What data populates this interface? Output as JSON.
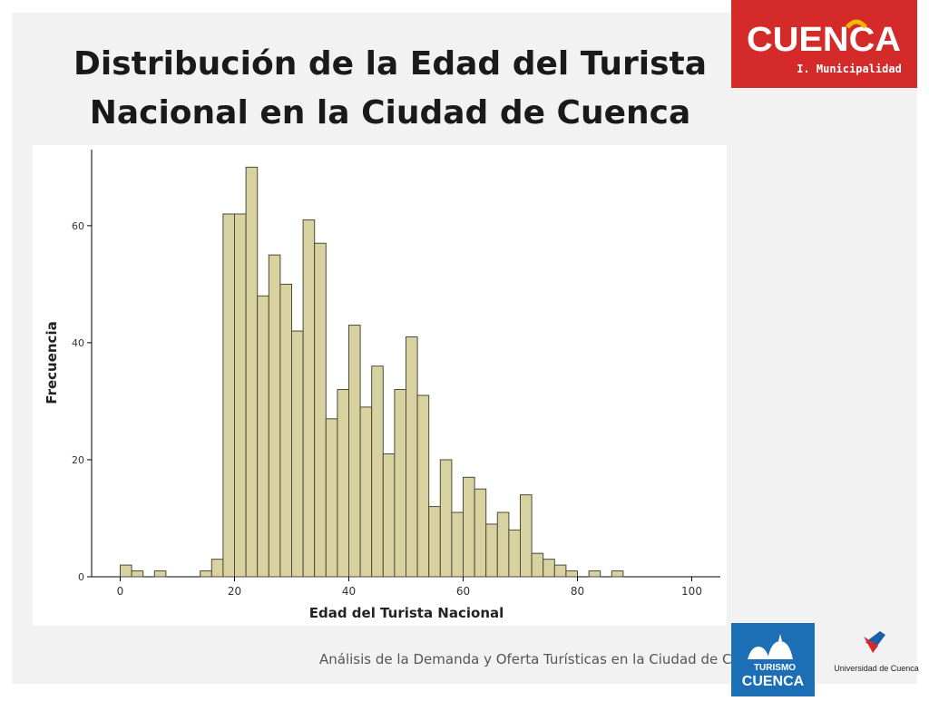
{
  "slide": {
    "title_line1": "Distribución de la Edad del Turista",
    "title_line2": "Nacional en la Ciudad de Cuenca",
    "footer": "Análisis de la Demanda y Oferta Turísticas en la Ciudad de Cuenca"
  },
  "logos": {
    "cuenca_wordmark": "CUENCA",
    "cuenca_subtitle": "I. Municipalidad",
    "turismo_top": "TURISMO",
    "turismo_word": "CUENCA",
    "universidad": "Universidad de Cuenca"
  },
  "colors": {
    "bar_fill": "#d7d2a0",
    "bar_stroke": "#4d4a3a",
    "cuenca_red": "#d42a2a",
    "turismo_blue": "#1c6eb5"
  },
  "chart_data": {
    "type": "bar",
    "xlabel": "Edad del Turista Nacional",
    "ylabel": "Frecuencia",
    "xlim": [
      -5,
      105
    ],
    "ylim": [
      0,
      73
    ],
    "xticks": [
      0,
      20,
      40,
      60,
      80,
      100
    ],
    "yticks": [
      0,
      20,
      40,
      60
    ],
    "bin_width": 2,
    "grid": false,
    "bins": [
      {
        "x": 1,
        "y": 2
      },
      {
        "x": 3,
        "y": 1
      },
      {
        "x": 7,
        "y": 1
      },
      {
        "x": 15,
        "y": 1
      },
      {
        "x": 17,
        "y": 3
      },
      {
        "x": 19,
        "y": 62
      },
      {
        "x": 21,
        "y": 62
      },
      {
        "x": 23,
        "y": 70
      },
      {
        "x": 25,
        "y": 48
      },
      {
        "x": 27,
        "y": 55
      },
      {
        "x": 29,
        "y": 50
      },
      {
        "x": 31,
        "y": 42
      },
      {
        "x": 33,
        "y": 61
      },
      {
        "x": 35,
        "y": 57
      },
      {
        "x": 37,
        "y": 27
      },
      {
        "x": 39,
        "y": 32
      },
      {
        "x": 41,
        "y": 43
      },
      {
        "x": 43,
        "y": 29
      },
      {
        "x": 45,
        "y": 36
      },
      {
        "x": 47,
        "y": 21
      },
      {
        "x": 49,
        "y": 32
      },
      {
        "x": 51,
        "y": 41
      },
      {
        "x": 53,
        "y": 31
      },
      {
        "x": 55,
        "y": 12
      },
      {
        "x": 57,
        "y": 20
      },
      {
        "x": 59,
        "y": 11
      },
      {
        "x": 61,
        "y": 17
      },
      {
        "x": 63,
        "y": 15
      },
      {
        "x": 65,
        "y": 9
      },
      {
        "x": 67,
        "y": 11
      },
      {
        "x": 69,
        "y": 8
      },
      {
        "x": 71,
        "y": 14
      },
      {
        "x": 73,
        "y": 4
      },
      {
        "x": 75,
        "y": 3
      },
      {
        "x": 77,
        "y": 2
      },
      {
        "x": 79,
        "y": 1
      },
      {
        "x": 83,
        "y": 1
      },
      {
        "x": 87,
        "y": 1
      }
    ]
  }
}
